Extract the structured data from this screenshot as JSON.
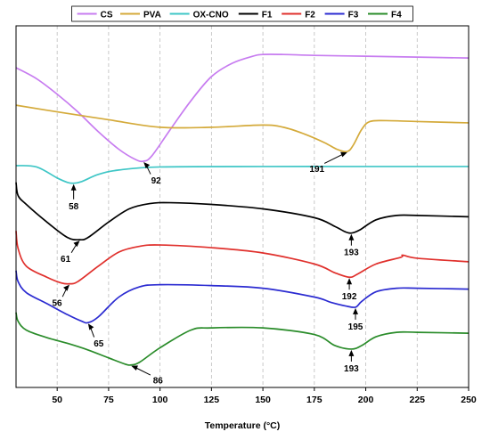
{
  "chart_data": {
    "type": "line",
    "xlabel": "Temperature (°C)",
    "ylabel": "",
    "xlim": [
      30,
      250
    ],
    "x_ticks": [
      50,
      75,
      100,
      125,
      150,
      175,
      200,
      225,
      250
    ],
    "grid": "vertical dashed",
    "legend_position": "top",
    "series": [
      {
        "name": "CS",
        "color": "#c77cf0",
        "x": [
          30,
          40,
          50,
          60,
          70,
          80,
          88,
          92,
          96,
          105,
          115,
          125,
          135,
          145,
          150,
          160,
          175,
          200,
          225,
          250
        ],
        "y": [
          8.8,
          8.55,
          8.2,
          7.8,
          7.35,
          6.95,
          6.72,
          6.68,
          6.8,
          7.4,
          8.05,
          8.6,
          8.9,
          9.06,
          9.1,
          9.1,
          9.08,
          9.06,
          9.04,
          9.02
        ]
      },
      {
        "name": "PVA",
        "color": "#d4aa3a",
        "x": [
          30,
          50,
          75,
          100,
          125,
          150,
          160,
          170,
          180,
          186,
          191,
          194,
          198,
          202,
          210,
          225,
          250
        ],
        "y": [
          7.95,
          7.8,
          7.62,
          7.45,
          7.45,
          7.5,
          7.45,
          7.3,
          7.1,
          6.95,
          6.9,
          7.05,
          7.4,
          7.58,
          7.6,
          7.58,
          7.55
        ]
      },
      {
        "name": "OX-CNO",
        "color": "#3ec6c6",
        "x": [
          30,
          40,
          50,
          55,
          58,
          62,
          70,
          80,
          100,
          150,
          200,
          250
        ],
        "y": [
          6.58,
          6.55,
          6.3,
          6.2,
          6.18,
          6.22,
          6.38,
          6.48,
          6.55,
          6.56,
          6.56,
          6.56
        ]
      },
      {
        "name": "F1",
        "color": "#000000",
        "x": [
          30,
          31,
          35,
          45,
          55,
          61,
          65,
          75,
          85,
          95,
          105,
          125,
          150,
          175,
          185,
          190,
          193,
          197,
          205,
          215,
          225,
          250
        ],
        "y": [
          6.2,
          5.9,
          5.7,
          5.3,
          4.95,
          4.9,
          4.95,
          5.3,
          5.6,
          5.72,
          5.74,
          5.7,
          5.6,
          5.4,
          5.2,
          5.08,
          5.05,
          5.12,
          5.35,
          5.45,
          5.45,
          5.42
        ]
      },
      {
        "name": "F2",
        "color": "#e0302c",
        "x": [
          30,
          31,
          35,
          45,
          52,
          56,
          60,
          70,
          80,
          90,
          100,
          125,
          150,
          175,
          185,
          192,
          196,
          205,
          217,
          218,
          225,
          250
        ],
        "y": [
          5.1,
          4.7,
          4.3,
          4.05,
          3.92,
          3.9,
          3.95,
          4.3,
          4.62,
          4.75,
          4.78,
          4.72,
          4.6,
          4.35,
          4.15,
          4.05,
          4.12,
          4.35,
          4.5,
          4.55,
          4.48,
          4.4
        ]
      },
      {
        "name": "F3",
        "color": "#2b2bd1",
        "x": [
          30,
          31,
          35,
          45,
          55,
          62,
          65,
          70,
          80,
          90,
          100,
          125,
          150,
          175,
          183,
          190,
          195,
          198,
          205,
          215,
          225,
          250
        ],
        "y": [
          4.2,
          3.95,
          3.7,
          3.45,
          3.2,
          3.05,
          3.02,
          3.15,
          3.6,
          3.83,
          3.88,
          3.86,
          3.8,
          3.6,
          3.48,
          3.4,
          3.37,
          3.5,
          3.72,
          3.8,
          3.8,
          3.78
        ]
      },
      {
        "name": "F4",
        "color": "#2a8c2a",
        "x": [
          30,
          31,
          35,
          45,
          55,
          65,
          75,
          83,
          86,
          90,
          100,
          115,
          125,
          150,
          175,
          185,
          193,
          198,
          205,
          215,
          225,
          250
        ],
        "y": [
          3.25,
          3.05,
          2.85,
          2.68,
          2.55,
          2.4,
          2.22,
          2.08,
          2.06,
          2.12,
          2.45,
          2.85,
          2.9,
          2.9,
          2.75,
          2.5,
          2.42,
          2.5,
          2.7,
          2.8,
          2.8,
          2.78
        ]
      }
    ],
    "annotations": [
      {
        "label": "92",
        "series": "CS",
        "x": 92,
        "y": 6.68
      },
      {
        "label": "191",
        "series": "PVA",
        "x": 191,
        "y": 6.9
      },
      {
        "label": "58",
        "series": "OX-CNO",
        "x": 58,
        "y": 6.18
      },
      {
        "label": "193",
        "series": "F1",
        "x": 193,
        "y": 5.05
      },
      {
        "label": "61",
        "series": "F1",
        "x": 61,
        "y": 4.9
      },
      {
        "label": "192",
        "series": "F2",
        "x": 192,
        "y": 4.05
      },
      {
        "label": "56",
        "series": "F2",
        "x": 56,
        "y": 3.9
      },
      {
        "label": "195",
        "series": "F3",
        "x": 195,
        "y": 3.37
      },
      {
        "label": "65",
        "series": "F3",
        "x": 65,
        "y": 3.02
      },
      {
        "label": "193",
        "series": "F4",
        "x": 193,
        "y": 2.42
      },
      {
        "label": "86",
        "series": "F4",
        "x": 86,
        "y": 2.06
      }
    ]
  }
}
